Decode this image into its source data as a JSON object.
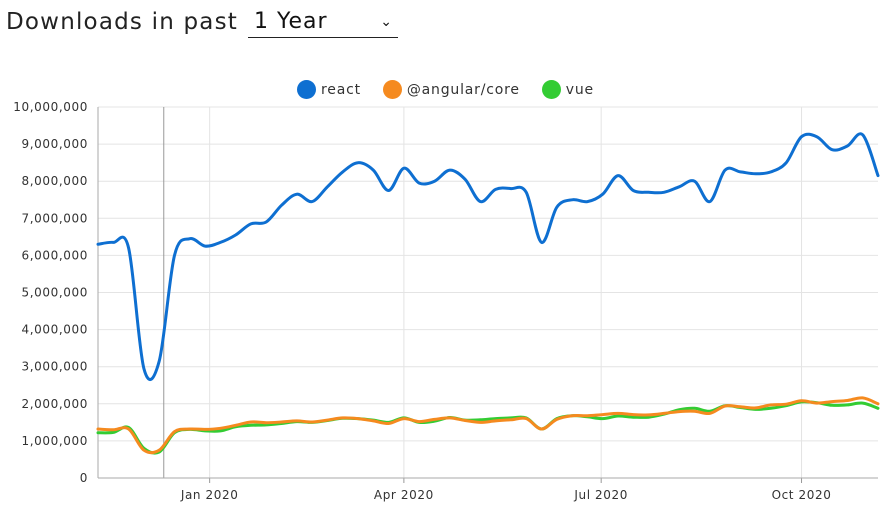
{
  "header": {
    "title": "Downloads in past",
    "period": "1 Year",
    "chevron_icon": "chevron-down-icon"
  },
  "chart_data": {
    "type": "line",
    "grid": true,
    "legend_position": "top-center",
    "y_ticks": [
      "0",
      "1,000,000",
      "2,000,000",
      "3,000,000",
      "4,000,000",
      "5,000,000",
      "6,000,000",
      "7,000,000",
      "8,000,000",
      "9,000,000",
      "10,000,000"
    ],
    "ylim": [
      0,
      10000000
    ],
    "x_ticks": [
      {
        "label": "Jan 2020",
        "at": 7.3
      },
      {
        "label": "Apr 2020",
        "at": 20.0
      },
      {
        "label": "Jul 2020",
        "at": 32.9
      },
      {
        "label": "Oct 2020",
        "at": 46.0
      }
    ],
    "x": [
      0,
      1,
      2,
      3,
      4,
      5,
      6,
      7,
      8,
      9,
      10,
      11,
      12,
      13,
      14,
      15,
      16,
      17,
      18,
      19,
      20,
      21,
      22,
      23,
      24,
      25,
      26,
      27,
      28,
      29,
      30,
      31,
      32,
      33,
      34,
      35,
      36,
      37,
      38,
      39,
      40,
      41,
      42,
      43,
      44,
      45,
      46,
      47,
      48,
      49,
      50,
      51
    ],
    "series": [
      {
        "name": "react",
        "color": "#0e6fd1",
        "values": [
          6300000,
          6350000,
          6200000,
          2950000,
          3150000,
          6000000,
          6450000,
          6250000,
          6350000,
          6550000,
          6850000,
          6900000,
          7350000,
          7650000,
          7450000,
          7850000,
          8250000,
          8500000,
          8300000,
          7750000,
          8350000,
          7950000,
          8000000,
          8300000,
          8050000,
          7450000,
          7780000,
          7800000,
          7700000,
          6350000,
          7300000,
          7500000,
          7450000,
          7650000,
          8150000,
          7750000,
          7700000,
          7700000,
          7850000,
          8000000,
          7450000,
          8300000,
          8250000,
          8200000,
          8250000,
          8500000,
          9200000,
          9200000,
          8850000,
          8950000,
          9250000,
          8150000
        ]
      },
      {
        "name": "@angular/core",
        "color": "#f58a1f",
        "values": [
          1320000,
          1300000,
          1320000,
          750000,
          750000,
          1250000,
          1320000,
          1310000,
          1340000,
          1420000,
          1510000,
          1490000,
          1510000,
          1540000,
          1510000,
          1560000,
          1620000,
          1600000,
          1540000,
          1470000,
          1600000,
          1520000,
          1580000,
          1620000,
          1550000,
          1500000,
          1540000,
          1570000,
          1600000,
          1320000,
          1580000,
          1680000,
          1680000,
          1710000,
          1740000,
          1710000,
          1700000,
          1740000,
          1790000,
          1800000,
          1740000,
          1940000,
          1920000,
          1890000,
          1970000,
          1990000,
          2080000,
          2020000,
          2060000,
          2090000,
          2160000,
          2000000
        ]
      },
      {
        "name": "vue",
        "color": "#33cc33",
        "values": [
          1220000,
          1230000,
          1360000,
          800000,
          700000,
          1220000,
          1310000,
          1270000,
          1270000,
          1380000,
          1420000,
          1430000,
          1470000,
          1520000,
          1500000,
          1550000,
          1610000,
          1600000,
          1560000,
          1500000,
          1620000,
          1500000,
          1530000,
          1630000,
          1560000,
          1570000,
          1600000,
          1620000,
          1620000,
          1320000,
          1600000,
          1680000,
          1650000,
          1600000,
          1670000,
          1640000,
          1640000,
          1720000,
          1840000,
          1880000,
          1800000,
          1950000,
          1900000,
          1850000,
          1880000,
          1950000,
          2050000,
          2030000,
          1960000,
          1970000,
          2020000,
          1880000
        ]
      }
    ]
  }
}
